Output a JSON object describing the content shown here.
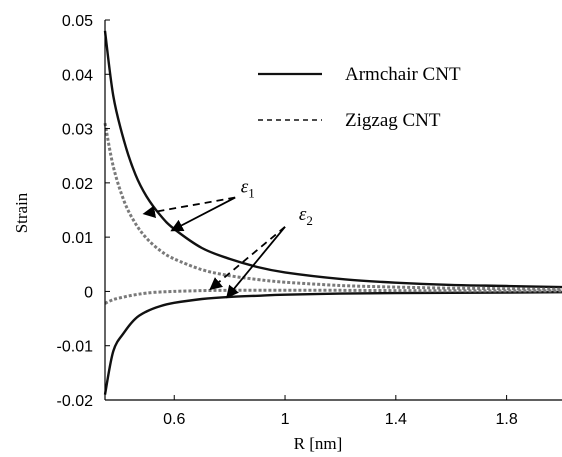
{
  "chart_data": {
    "type": "line",
    "xlabel": "R [nm]",
    "ylabel": "Strain",
    "xlim": [
      0.35,
      2.0
    ],
    "ylim": [
      -0.02,
      0.05
    ],
    "x_ticks": [
      "0.6",
      "1",
      "1.4",
      "1.8"
    ],
    "x_tick_values": [
      0.6,
      1.0,
      1.4,
      1.8
    ],
    "y_ticks": [
      "0.05",
      "0.04",
      "0.03",
      "0.02",
      "0.01",
      "0",
      "-0.01",
      "-0.02"
    ],
    "y_tick_values": [
      0.05,
      0.04,
      0.03,
      0.02,
      0.01,
      0,
      -0.01,
      -0.02
    ],
    "grid": false,
    "legend_position": "top-right",
    "legend": [
      {
        "label": "Armchair CNT",
        "style": "solid"
      },
      {
        "label": "Zigzag CNT",
        "style": "dashed"
      }
    ],
    "series": [
      {
        "name": "Armchair CNT",
        "component": "ε1",
        "style": "solid",
        "color": "#111111",
        "x": [
          0.35,
          0.38,
          0.42,
          0.46,
          0.5,
          0.55,
          0.6,
          0.7,
          0.8,
          0.9,
          1.0,
          1.2,
          1.4,
          1.6,
          1.8,
          2.0
        ],
        "y": [
          0.048,
          0.036,
          0.0275,
          0.0215,
          0.0175,
          0.014,
          0.0115,
          0.008,
          0.006,
          0.0045,
          0.0035,
          0.0023,
          0.0016,
          0.0012,
          0.001,
          0.0008
        ]
      },
      {
        "name": "Armchair CNT",
        "component": "ε2",
        "style": "solid",
        "color": "#111111",
        "x": [
          0.35,
          0.38,
          0.42,
          0.46,
          0.5,
          0.55,
          0.6,
          0.7,
          0.8,
          0.9,
          1.0,
          1.2,
          1.4,
          1.6,
          1.8,
          2.0
        ],
        "y": [
          -0.019,
          -0.011,
          -0.0075,
          -0.005,
          -0.0037,
          -0.0027,
          -0.0021,
          -0.0014,
          -0.001,
          -0.0008,
          -0.0006,
          -0.0004,
          -0.0003,
          -0.00025,
          -0.0002,
          -0.00015
        ]
      },
      {
        "name": "Zigzag CNT",
        "component": "ε1",
        "style": "dashed",
        "color": "#7a7a7a",
        "x": [
          0.35,
          0.38,
          0.42,
          0.46,
          0.5,
          0.55,
          0.6,
          0.7,
          0.8,
          0.9,
          1.0,
          1.2,
          1.4,
          1.6,
          1.8,
          2.0
        ],
        "y": [
          0.031,
          0.023,
          0.0165,
          0.0125,
          0.0098,
          0.0075,
          0.006,
          0.004,
          0.0029,
          0.0022,
          0.0017,
          0.0011,
          0.0008,
          0.0006,
          0.0005,
          0.0004
        ]
      },
      {
        "name": "Zigzag CNT",
        "component": "ε2",
        "style": "dashed",
        "color": "#7a7a7a",
        "x": [
          0.35,
          0.38,
          0.42,
          0.46,
          0.5,
          0.55,
          0.6,
          0.7,
          0.8,
          0.9,
          1.0,
          1.2,
          1.4,
          1.6,
          1.8,
          2.0
        ],
        "y": [
          -0.0022,
          -0.0015,
          -0.001,
          -0.0006,
          -0.0003,
          -0.0001,
          0.0,
          0.00015,
          0.0002,
          0.0002,
          0.0002,
          0.0002,
          0.00015,
          0.00012,
          0.0001,
          0.0001
        ]
      }
    ],
    "annotations": [
      {
        "symbol": "ε",
        "subscript": "1",
        "text_at": [
          0.84,
          0.0182
        ],
        "arrows": [
          {
            "from": [
              0.82,
              0.0173
            ],
            "to": [
              0.49,
              0.0143
            ],
            "style": "dashed"
          },
          {
            "from": [
              0.82,
              0.0173
            ],
            "to": [
              0.59,
              0.0112
            ],
            "style": "solid"
          }
        ]
      },
      {
        "symbol": "ε",
        "subscript": "2",
        "text_at": [
          1.05,
          0.0132
        ],
        "arrows": [
          {
            "from": [
              1.0,
              0.0119
            ],
            "to": [
              0.73,
              0.0004
            ],
            "style": "dashed"
          },
          {
            "from": [
              1.0,
              0.0119
            ],
            "to": [
              0.79,
              -0.0011
            ],
            "style": "solid"
          }
        ]
      }
    ]
  }
}
